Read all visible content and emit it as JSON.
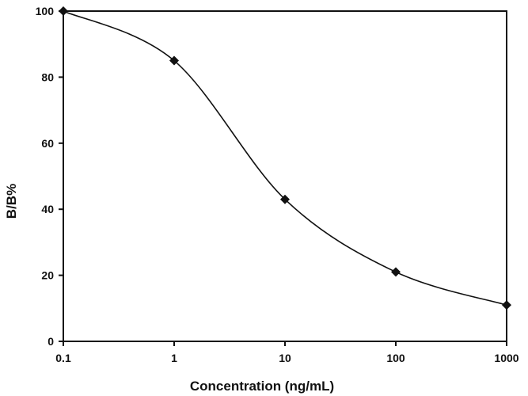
{
  "chart_data": {
    "type": "line",
    "xlabel": "Concentration (ng/mL)",
    "ylabel": "B/B%",
    "x_scale": "log",
    "xlim": [
      0.1,
      1000
    ],
    "ylim": [
      0,
      100
    ],
    "x_ticks": [
      0.1,
      1,
      10,
      100,
      1000
    ],
    "x_tick_labels": [
      "0.1",
      "1",
      "10",
      "100",
      "1000"
    ],
    "y_ticks": [
      0,
      20,
      40,
      60,
      80,
      100
    ],
    "y_tick_labels": [
      "0",
      "20",
      "40",
      "60",
      "80",
      "100"
    ],
    "grid": false,
    "series": [
      {
        "marker": "diamond",
        "color": "#111111",
        "points": [
          {
            "x": 0.1,
            "y": 100
          },
          {
            "x": 1,
            "y": 85
          },
          {
            "x": 10,
            "y": 43
          },
          {
            "x": 100,
            "y": 21
          },
          {
            "x": 1000,
            "y": 11
          }
        ]
      }
    ]
  }
}
